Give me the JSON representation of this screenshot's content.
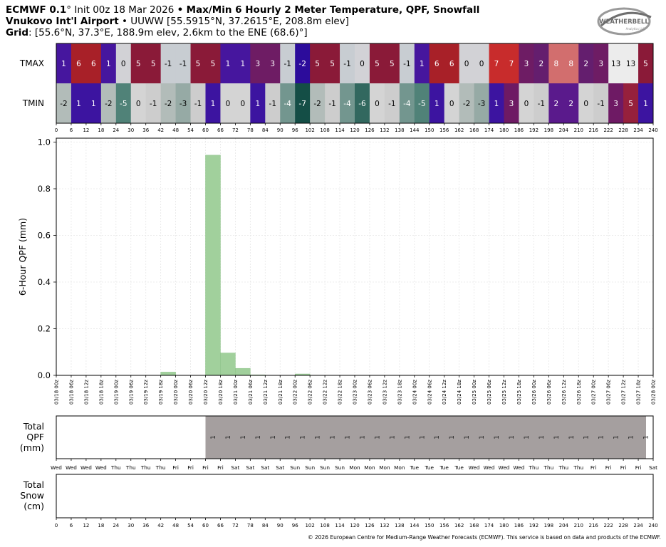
{
  "header": {
    "line1": {
      "model": "ECMWF 0.1",
      "deg": "°",
      "init": "Init 00z 18 Mar 2026",
      "bullet": "•",
      "product": "Max/Min 6 Hourly 2 Meter Temperature,  QPF,  Snowfall"
    },
    "line2": {
      "station": "Vnukovo Int'l Airport",
      "bullet": "•",
      "details": "UUWW [55.5915°N, 37.2615°E, 208.8m elev]"
    },
    "line3": {
      "label": "Grid",
      "details": ": [55.6°N, 37.3°E, 188.9m elev, 2.6km to the ENE (68.6)°]"
    }
  },
  "logo": {
    "name": "WeatherBELL",
    "text": "WEATHERBELL",
    "subtext": "Analytics LLC"
  },
  "colors": {
    "grid": "#e6e6e6",
    "qpf_bar": "#a1d09c",
    "qpf_bar_edge": "#8cc488",
    "total_qpf_fill": "#a59f9f",
    "border": "#000000"
  },
  "chart_data": [
    {
      "type": "heatmap",
      "rows": [
        "TMAX",
        "TMIN"
      ],
      "x": [
        3,
        9,
        15,
        21,
        27,
        33,
        39,
        45,
        51,
        57,
        63,
        69,
        75,
        81,
        87,
        93,
        99,
        105,
        111,
        117,
        123,
        129,
        135,
        141,
        147,
        153,
        159,
        165,
        171,
        177,
        183,
        189,
        195,
        201,
        207,
        213,
        219,
        225,
        231,
        237
      ],
      "x_ticks": [
        0,
        6,
        12,
        18,
        24,
        30,
        36,
        42,
        48,
        54,
        60,
        66,
        72,
        78,
        84,
        90,
        96,
        102,
        108,
        114,
        120,
        126,
        132,
        138,
        144,
        150,
        156,
        162,
        168,
        174,
        180,
        186,
        192,
        198,
        204,
        210,
        216,
        222,
        228,
        234,
        240
      ],
      "xlim": [
        0,
        240
      ],
      "tmax": [
        1,
        6,
        6,
        1,
        0,
        5,
        5,
        -1,
        -1,
        5,
        5,
        1,
        1,
        3,
        3,
        -1,
        -2,
        5,
        5,
        -1,
        0,
        5,
        5,
        -1,
        1,
        6,
        6,
        0,
        0,
        7,
        7,
        3,
        2,
        8,
        8,
        2,
        3,
        13,
        13,
        5
      ],
      "tmin": [
        -2,
        1,
        1,
        -2,
        -5,
        0,
        -1,
        -2,
        -3,
        -1,
        1,
        0,
        0,
        1,
        -1,
        -4,
        -7,
        -2,
        -1,
        -4,
        -6,
        0,
        -1,
        -4,
        -5,
        1,
        0,
        -2,
        -3,
        1,
        3,
        0,
        -1,
        2,
        2,
        0,
        -1,
        3,
        5,
        1
      ]
    },
    {
      "type": "bar",
      "ylabel": "6-Hour QPF (mm)",
      "ylim": [
        0,
        1.0
      ],
      "yticks": [
        "0.0",
        "0.2",
        "0.4",
        "0.6",
        "0.8",
        "1.0"
      ],
      "x_ticks": [
        "03/18 00z",
        "03/18 06z",
        "03/18 12z",
        "03/18 18z",
        "03/19 00z",
        "03/19 06z",
        "03/19 12z",
        "03/19 18z",
        "03/20 00z",
        "03/20 06z",
        "03/20 12z",
        "03/20 18z",
        "03/21 00z",
        "03/21 06z",
        "03/21 12z",
        "03/21 18z",
        "03/22 00z",
        "03/22 06z",
        "03/22 12z",
        "03/22 18z",
        "03/23 00z",
        "03/23 06z",
        "03/23 12z",
        "03/23 18z",
        "03/24 00z",
        "03/24 06z",
        "03/24 12z",
        "03/24 18z",
        "03/25 00z",
        "03/25 06z",
        "03/25 12z",
        "03/25 18z",
        "03/26 00z",
        "03/26 06z",
        "03/26 12z",
        "03/26 18z",
        "03/27 00z",
        "03/27 06z",
        "03/27 12z",
        "03/27 18z",
        "03/28 00z"
      ],
      "x_hours": [
        3,
        9,
        15,
        21,
        27,
        33,
        39,
        45,
        51,
        57,
        63,
        69,
        75,
        81,
        87,
        93,
        99,
        105,
        111,
        117,
        123,
        129,
        135,
        141,
        147,
        153,
        159,
        165,
        171,
        177,
        183,
        189,
        195,
        201,
        207,
        213,
        219,
        225,
        231,
        237
      ],
      "values": [
        0,
        0,
        0,
        0,
        0,
        0,
        0,
        0.014,
        0,
        0,
        0.944,
        0.096,
        0.03,
        0.002,
        0,
        0,
        0.006,
        0,
        0,
        0,
        0,
        0,
        0,
        0,
        0,
        0,
        0,
        0,
        0,
        0,
        0,
        0,
        0,
        0,
        0,
        0,
        0,
        0,
        0,
        0
      ],
      "xlim": [
        0,
        240
      ]
    },
    {
      "type": "area",
      "ylabel": [
        "Total",
        "QPF",
        "(mm)"
      ],
      "x_ticks": [
        "Wed",
        "Wed",
        "Wed",
        "Wed",
        "Thu",
        "Thu",
        "Thu",
        "Thu",
        "Fri",
        "Fri",
        "Fri",
        "Fri",
        "Sat",
        "Sat",
        "Sat",
        "Sat",
        "Sun",
        "Sun",
        "Sun",
        "Sun",
        "Mon",
        "Mon",
        "Mon",
        "Mon",
        "Tue",
        "Tue",
        "Tue",
        "Tue",
        "Wed",
        "Wed",
        "Wed",
        "Wed",
        "Thu",
        "Thu",
        "Thu",
        "Thu",
        "Fri",
        "Fri",
        "Fri",
        "Fri",
        "Sat"
      ],
      "fill_start_hour": 60,
      "label_hours": [
        63,
        69,
        75,
        81,
        87,
        93,
        99,
        105,
        111,
        117,
        123,
        129,
        135,
        141,
        147,
        153,
        159,
        165,
        171,
        177,
        183,
        189,
        195,
        201,
        207,
        213,
        219,
        225,
        231,
        237
      ],
      "label": "1",
      "xlim": [
        0,
        240
      ]
    },
    {
      "type": "area",
      "ylabel": [
        "Total",
        "Snow",
        "(cm)"
      ],
      "x_ticks": [
        0,
        6,
        12,
        18,
        24,
        30,
        36,
        42,
        48,
        54,
        60,
        66,
        72,
        78,
        84,
        90,
        96,
        102,
        108,
        114,
        120,
        126,
        132,
        138,
        144,
        150,
        156,
        162,
        168,
        174,
        180,
        186,
        192,
        198,
        204,
        210,
        216,
        222,
        228,
        234,
        240
      ],
      "values": [],
      "xlim": [
        0,
        240
      ]
    }
  ],
  "footer": {
    "copyright": "© 2026 European Centre for Medium-Range Weather Forecasts (ECMWF). This service is based on data and products of the ECMWF."
  }
}
